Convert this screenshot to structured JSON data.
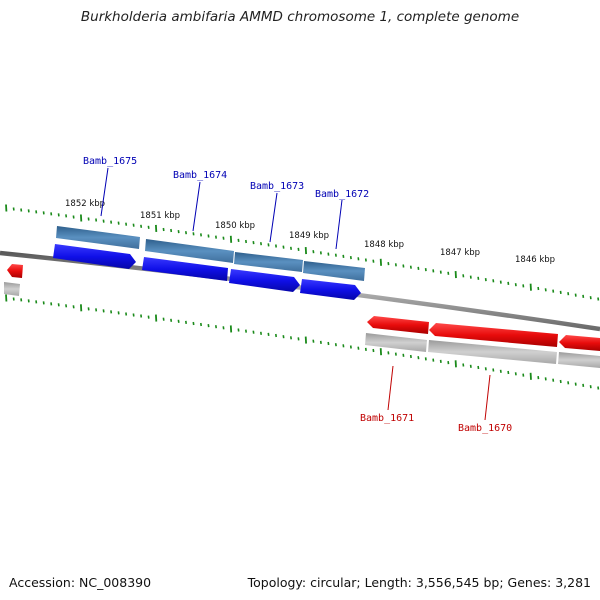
{
  "title": "Burkholderia ambifaria AMMD chromosome 1, complete genome",
  "footer": {
    "accession": "Accession: NC_008390",
    "summary": "Topology: circular; Length: 3,556,545 bp; Genes: 3,281"
  },
  "colors": {
    "forward_gene": "#1010e8",
    "forward_band": "#4a7fb0",
    "reverse_gene": "#e80c0c",
    "reverse_band": "#b8b8b8",
    "backbone": "#808080",
    "tick": "#1a8a1a",
    "forward_label": "#0000b4",
    "reverse_label": "#c00000"
  },
  "ticks": [
    {
      "label": "1852 kbp"
    },
    {
      "label": "1851 kbp"
    },
    {
      "label": "1850 kbp"
    },
    {
      "label": "1849 kbp"
    },
    {
      "label": "1848 kbp"
    },
    {
      "label": "1847 kbp"
    },
    {
      "label": "1846 kbp"
    }
  ],
  "genes": [
    {
      "name": "Bamb_1675",
      "strand": "forward"
    },
    {
      "name": "Bamb_1674",
      "strand": "forward"
    },
    {
      "name": "Bamb_1673",
      "strand": "forward"
    },
    {
      "name": "Bamb_1672",
      "strand": "forward"
    },
    {
      "name": "Bamb_1671",
      "strand": "reverse"
    },
    {
      "name": "Bamb_1670",
      "strand": "reverse"
    }
  ]
}
